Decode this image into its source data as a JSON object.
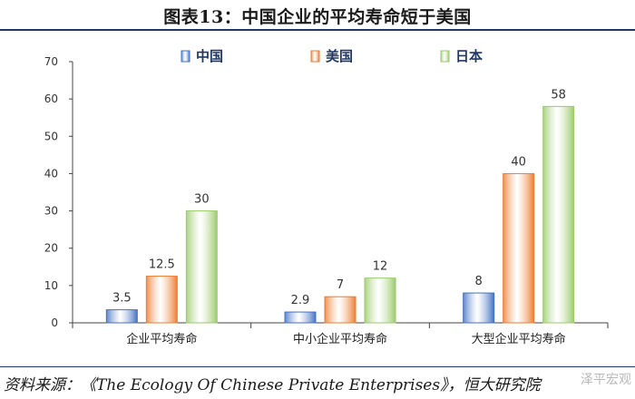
{
  "title": "图表13：中国企业的平均寿命短于美国",
  "source": "资料来源：《The Ecology Of Chinese Private Enterprises》，恒大研究院",
  "watermark": "泽平宏观",
  "chart_data": {
    "type": "bar",
    "categories": [
      "企业平均寿命",
      "中小企业平均寿命",
      "大型企业平均寿命"
    ],
    "series": [
      {
        "name": "中国",
        "values": [
          3.5,
          2.9,
          8
        ],
        "color": "#4472c4"
      },
      {
        "name": "美国",
        "values": [
          12.5,
          7,
          40
        ],
        "color": "#ed7d31"
      },
      {
        "name": "日本",
        "values": [
          30,
          12,
          58
        ],
        "color": "#9bcb6b"
      }
    ],
    "ylim": [
      0,
      70
    ],
    "yticks": [
      0,
      10,
      20,
      30,
      40,
      50,
      60,
      70
    ],
    "grid": false,
    "legend": "top-center"
  }
}
